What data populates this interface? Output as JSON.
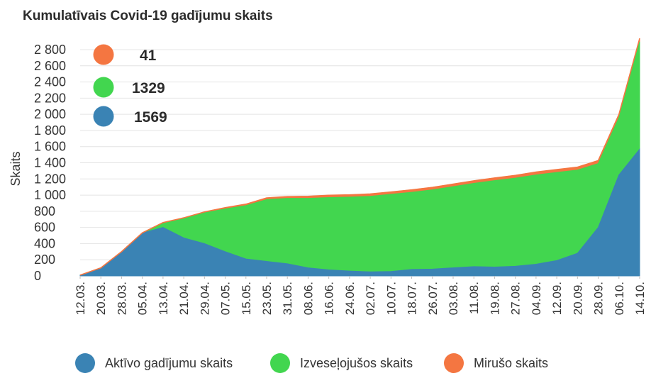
{
  "chart_data": {
    "type": "area",
    "title": "Kumulatīvais Covid-19 gadījumu skaits",
    "ylabel": "Skaits",
    "xlabel": "",
    "ylim": [
      0,
      2800
    ],
    "yticks": [
      0,
      200,
      400,
      600,
      800,
      1000,
      1200,
      1400,
      1600,
      1800,
      2000,
      2200,
      2400,
      2600,
      2800
    ],
    "ytick_labels": [
      "0",
      "200",
      "400",
      "600",
      "800",
      "1 000",
      "1 200",
      "1 400",
      "1 600",
      "1 800",
      "2 000",
      "2 200",
      "2 400",
      "2 600",
      "2 800"
    ],
    "categories": [
      "12.03.",
      "20.03.",
      "28.03.",
      "05.04.",
      "13.04.",
      "21.04.",
      "29.04.",
      "07.05.",
      "15.05.",
      "23.05.",
      "31.05.",
      "08.06.",
      "16.06.",
      "24.06.",
      "02.07.",
      "10.07.",
      "18.07.",
      "26.07.",
      "03.08.",
      "11.08.",
      "19.08.",
      "27.08.",
      "04.09.",
      "12.09.",
      "20.09.",
      "28.09.",
      "06.10.",
      "14.10."
    ],
    "stacked": true,
    "series": [
      {
        "name": "Aktīvo gadījumu skaits",
        "color": "#3a83b4",
        "values": [
          10,
          100,
          300,
          530,
          600,
          470,
          400,
          300,
          210,
          180,
          150,
          100,
          75,
          60,
          50,
          55,
          80,
          85,
          100,
          115,
          110,
          120,
          145,
          190,
          280,
          600,
          1250,
          1569
        ]
      },
      {
        "name": "Izveseļojušos skaits",
        "color": "#42d64f",
        "values": [
          0,
          0,
          0,
          0,
          55,
          240,
          380,
          530,
          660,
          765,
          810,
          860,
          895,
          915,
          935,
          955,
          955,
          980,
          1005,
          1030,
          1070,
          1090,
          1105,
          1090,
          1030,
          790,
          710,
          1329
        ]
      },
      {
        "name": "Mirušo skaits",
        "color": "#f47641",
        "values": [
          0,
          0,
          1,
          3,
          5,
          9,
          12,
          15,
          18,
          20,
          22,
          25,
          28,
          28,
          29,
          29,
          30,
          31,
          31,
          32,
          32,
          34,
          35,
          36,
          36,
          37,
          38,
          41
        ]
      }
    ],
    "annotations": [
      {
        "text": "41",
        "color": "#f47641"
      },
      {
        "text": "1329",
        "color": "#42d64f"
      },
      {
        "text": "1569",
        "color": "#3a83b4"
      }
    ],
    "legend": "bottom",
    "grid": true
  }
}
